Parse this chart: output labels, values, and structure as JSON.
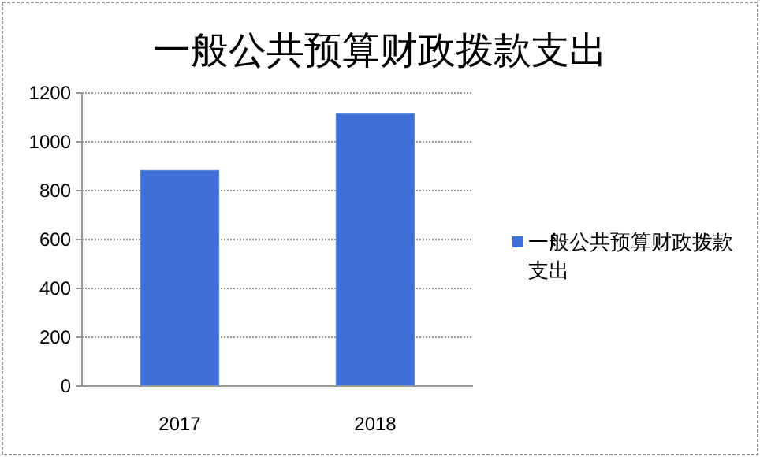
{
  "chart_data": {
    "type": "bar",
    "title": "一般公共预算财政拨款支出",
    "categories": [
      "2017",
      "2018"
    ],
    "series": [
      {
        "name": "一般公共预算财政拨款支出",
        "color": "#3d6fd6",
        "values": [
          883,
          1114
        ]
      }
    ],
    "ylim": [
      0,
      1200
    ],
    "yticks": [
      0,
      200,
      400,
      600,
      800,
      1000,
      1200
    ],
    "grid": "y",
    "legend": "right"
  }
}
